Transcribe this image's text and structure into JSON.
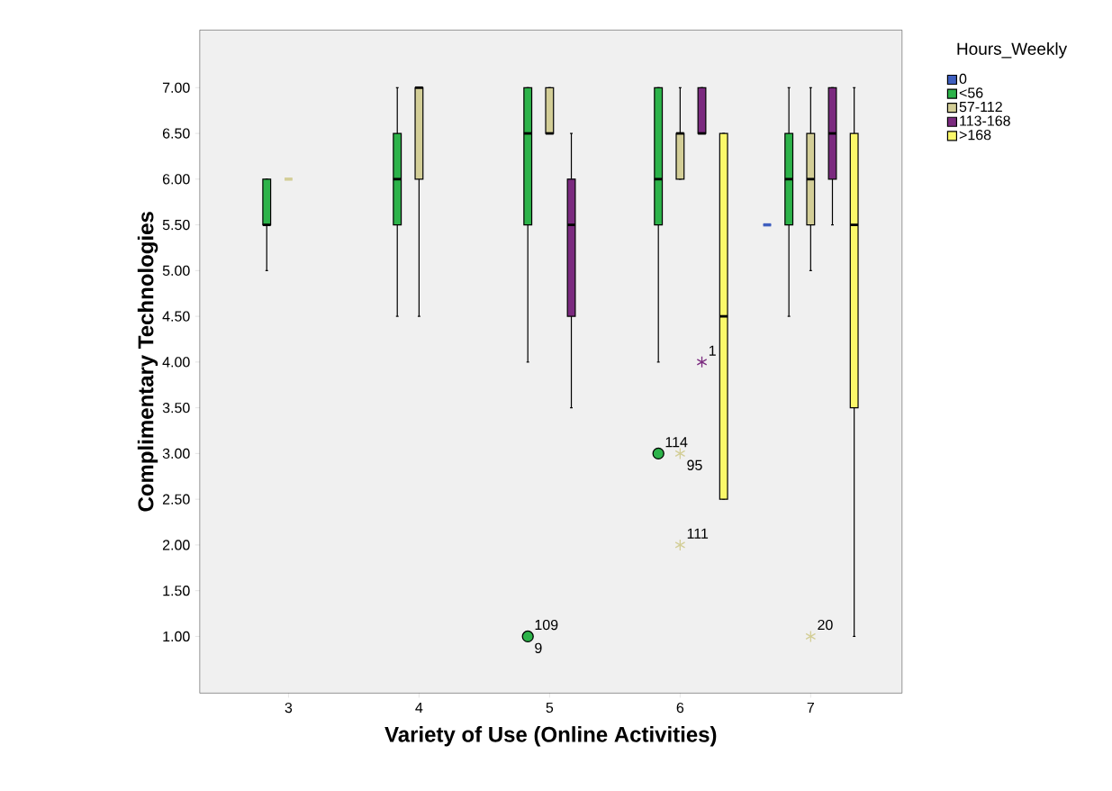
{
  "chart_data": {
    "type": "box",
    "xlabel": "Variety of Use (Online Activities)",
    "ylabel": "Complimentary Technologies",
    "legend_title": "Hours_Weekly",
    "legend": "top right",
    "categories": [
      "3",
      "4",
      "5",
      "6",
      "7"
    ],
    "ylim": [
      0.38,
      7.63
    ],
    "yticks": [
      {
        "value": 1,
        "label": "1.00"
      },
      {
        "value": 1.5,
        "label": "1.50"
      },
      {
        "value": 2,
        "label": "2.00"
      },
      {
        "value": 2.5,
        "label": "2.50"
      },
      {
        "value": 3,
        "label": "3.00"
      },
      {
        "value": 3.5,
        "label": "3.50"
      },
      {
        "value": 4,
        "label": "4.00"
      },
      {
        "value": 4.5,
        "label": "4.50"
      },
      {
        "value": 5,
        "label": "5.00"
      },
      {
        "value": 5.5,
        "label": "5.50"
      },
      {
        "value": 6,
        "label": "6.00"
      },
      {
        "value": 6.5,
        "label": "6.50"
      },
      {
        "value": 7,
        "label": "7.00"
      }
    ],
    "series": [
      {
        "name": "0",
        "color": "#3f5fbf",
        "boxes": [
          null,
          null,
          null,
          null,
          {
            "low": 5.5,
            "q1": 5.5,
            "median": 5.5,
            "q3": 5.5,
            "high": 5.5
          }
        ]
      },
      {
        "name": "<56",
        "color": "#2db34a",
        "marker": "circle",
        "boxes": [
          {
            "low": 5,
            "q1": 5.5,
            "median": 5.5,
            "q3": 6,
            "high": 6
          },
          {
            "low": 4.5,
            "q1": 5.5,
            "median": 6,
            "q3": 6.5,
            "high": 7
          },
          {
            "low": 4,
            "q1": 5.5,
            "median": 6.5,
            "q3": 7,
            "high": 7,
            "outliers": [
              1
            ]
          },
          {
            "low": 4,
            "q1": 5.5,
            "median": 6,
            "q3": 7,
            "high": 7,
            "outliers": [
              3
            ]
          },
          {
            "low": 4.5,
            "q1": 5.5,
            "median": 6,
            "q3": 6.5,
            "high": 7
          }
        ]
      },
      {
        "name": "57-112",
        "color": "#d3ce97",
        "marker": "star",
        "boxes": [
          {
            "low": 6,
            "q1": 6,
            "median": 6,
            "q3": 6,
            "high": 6
          },
          {
            "low": 4.5,
            "q1": 6,
            "median": 7,
            "q3": 7,
            "high": 7
          },
          {
            "low": 6.5,
            "q1": 6.5,
            "median": 6.5,
            "q3": 7,
            "high": 7
          },
          {
            "low": 6,
            "q1": 6,
            "median": 6.5,
            "q3": 6.5,
            "high": 7,
            "outliers": [
              3,
              2
            ]
          },
          {
            "low": 5,
            "q1": 5.5,
            "median": 6,
            "q3": 6.5,
            "high": 7,
            "outliers": [
              1
            ]
          }
        ]
      },
      {
        "name": "113-168",
        "color": "#7b2a7f",
        "marker": "star",
        "boxes": [
          null,
          null,
          {
            "low": 3.5,
            "q1": 4.5,
            "median": 5.5,
            "q3": 6,
            "high": 6.5
          },
          {
            "low": 6.5,
            "q1": 6.5,
            "median": 6.5,
            "q3": 7,
            "high": 7,
            "outliers": [
              4
            ]
          },
          {
            "low": 5.5,
            "q1": 6,
            "median": 6.5,
            "q3": 7,
            "high": 7
          }
        ]
      },
      {
        "name": ">168",
        "color": "#fbf86a",
        "boxes": [
          null,
          null,
          null,
          {
            "low": 2.5,
            "q1": 2.5,
            "median": 4.5,
            "q3": 6.5,
            "high": 6.5
          },
          {
            "low": 1,
            "q1": 3.5,
            "median": 5.5,
            "q3": 6.5,
            "high": 7
          }
        ]
      }
    ],
    "annotations": [
      "109",
      "9",
      "114",
      "95",
      "111",
      "1",
      "20"
    ]
  }
}
